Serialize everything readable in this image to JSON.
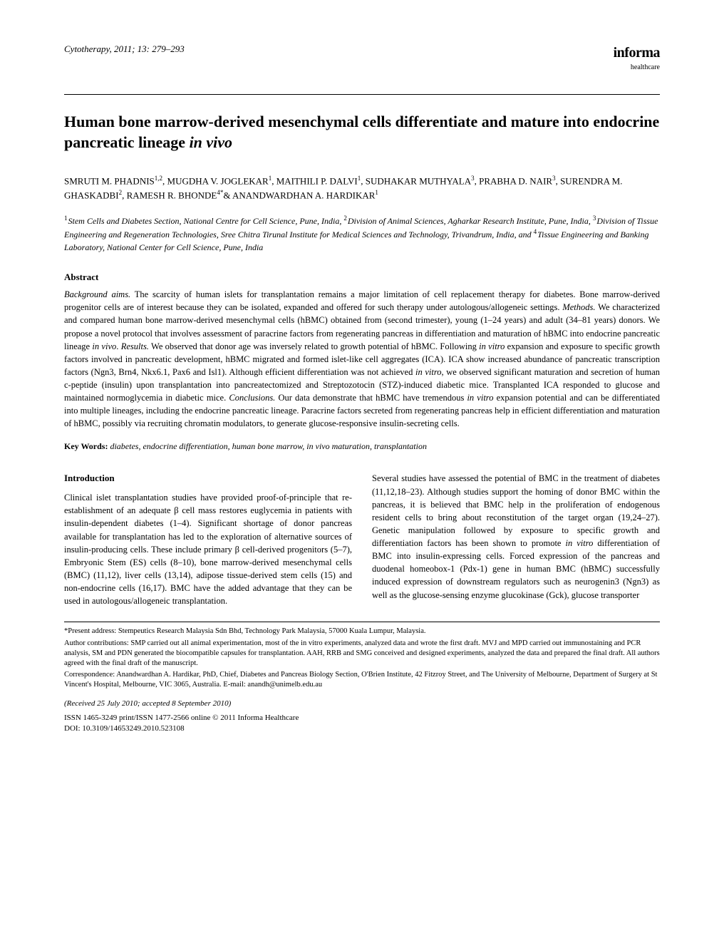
{
  "header": {
    "journal_ref": "Cytotherapy, 2011; 13: 279–293",
    "publisher_name": "informa",
    "publisher_sub": "healthcare"
  },
  "title_pre": "Human bone marrow-derived mesenchymal cells differentiate and mature into endocrine pancreatic lineage ",
  "title_ital": "in vivo",
  "authors": "SMRUTI M. PHADNIS",
  "authors_sup1": "1,2",
  "authors2": ", MUGDHA V. JOGLEKAR",
  "authors_sup2": "1",
  "authors3": ", MAITHILI P. DALVI",
  "authors_sup3": "1",
  "authors4": ", SUDHAKAR MUTHYALA",
  "authors_sup4": "3",
  "authors5": ", PRABHA D. NAIR",
  "authors_sup5": "3",
  "authors6": ", SURENDRA M. GHASKADBI",
  "authors_sup6": "2",
  "authors7": ", RAMESH R. BHONDE",
  "authors_sup7": "4*",
  "authors8": "& ANANDWARDHAN A. HARDIKAR",
  "authors_sup8": "1",
  "affiliations": {
    "a1s": "1",
    "a1": "Stem Cells and Diabetes Section, National Centre for Cell Science, Pune, India, ",
    "a2s": "2",
    "a2": "Division of Animal Sciences, Agharkar Research Institute, Pune, India, ",
    "a3s": "3",
    "a3": "Division of Tissue Engineering and Regeneration Technologies, Sree Chitra Tirunal Institute for Medical Sciences and Technology, Trivandrum, India, and ",
    "a4s": "4",
    "a4": "Tissue Engineering and Banking Laboratory, National Center for Cell Science, Pune, India"
  },
  "abstract": {
    "heading": "Abstract",
    "bg_label": "Background aims.",
    "bg": " The scarcity of human islets for transplantation remains a major limitation of cell replacement therapy for diabetes. Bone marrow-derived progenitor cells are of interest because they can be isolated, expanded and offered for such therapy under autologous/allogeneic settings. ",
    "m_label": "Methods.",
    "m": " We characterized and compared human bone marrow-derived mesenchymal cells (hBMC) obtained from (second trimester), young (1–24 years) and adult (34–81 years) donors. We propose a novel protocol that involves assessment of paracrine factors from regenerating pancreas in differentiation and maturation of hBMC into endocrine pancreatic lineage ",
    "m_ital": "in vivo",
    "m2": ". ",
    "r_label": "Results.",
    "r": " We observed that donor age was inversely related to growth potential of hBMC. Following ",
    "r_ital1": "in vitro",
    "r2": " expansion and exposure to specific growth factors involved in pancreatic development, hBMC migrated and formed islet-like cell aggregates (ICA). ICA show increased abundance of pancreatic transcription factors (Ngn3, Brn4, Nkx6.1, Pax6 and Isl1). Although efficient differentiation was not achieved ",
    "r_ital2": "in vitro",
    "r3": ", we observed significant maturation and secretion of human c-peptide (insulin) upon transplantation into pancreatectomized and Streptozotocin (STZ)-induced diabetic mice. Transplanted ICA responded to glucose and maintained normoglycemia in diabetic mice. ",
    "c_label": "Conclusions.",
    "c": " Our data demonstrate that hBMC have tremendous ",
    "c_ital": "in vitro",
    "c2": " expansion potential and can be differentiated into multiple lineages, including the endocrine pancreatic lineage. Paracrine factors secreted from regenerating pancreas help in efficient differentiation and maturation of hBMC, possibly via recruiting chromatin modulators, to generate glucose-responsive insulin-secreting cells."
  },
  "keywords": {
    "label": "Key Words:",
    "list": " diabetes, endocrine differentiation, human bone marrow, in vivo maturation, transplantation"
  },
  "intro": {
    "heading": "Introduction",
    "left": "Clinical islet transplantation studies have provided proof-of-principle that re-establishment of an adequate β cell mass restores euglycemia in patients with insulin-dependent diabetes (1–4). Significant shortage of donor pancreas available for transplantation has led to the exploration of alternative sources of insulin-producing cells. These include primary β cell-derived progenitors (5–7), Embryonic Stem (ES) cells (8–10), bone marrow-derived mesenchymal cells (BMC) (11,12), liver cells (13,14), adipose tissue-derived stem cells (15) and non-endocrine cells (16,17). BMC have the added advantage that they can be used in autologous/allogeneic transplantation.",
    "right1": "Several studies have assessed the potential of BMC in the treatment of diabetes (11,12,18–23). Although studies support the homing of donor BMC within the pancreas, it is believed that BMC help in the proliferation of endogenous resident cells to bring about reconstitution of the target organ (19,24–27). Genetic manipulation followed by exposure to specific growth and differentiation factors has been shown to promote ",
    "right_ital": "in vitro",
    "right2": " differentiation of BMC into insulin-expressing cells. Forced expression of the pancreas and duodenal homeobox-1 (Pdx-1) gene in human BMC (hBMC) successfully induced expression of downstream regulators such as neurogenin3 (Ngn3) as well as the glucose-sensing enzyme glucokinase (Gck), glucose transporter"
  },
  "footnotes": {
    "present": "*Present address: Stempeutics Research Malaysia Sdn Bhd, Technology Park Malaysia, 57000 Kuala Lumpur, Malaysia.",
    "contrib_label": "Author contributions:",
    "contrib": " SMP carried out all animal experimentation, most of the in vitro experiments, analyzed data and wrote the first draft. MVJ and MPD carried out immunostaining and PCR analysis, SM and PDN generated the biocompatible capsules for transplantation. AAH, RRB and SMG conceived and designed experiments, analyzed the data and prepared the final draft. All authors agreed with the final draft of the manuscript.",
    "corr_label": "Correspondence:",
    "corr": " Anandwardhan A. Hardikar, PhD, Chief, Diabetes and Pancreas Biology Section, O'Brien Institute, 42 Fitzroy Street, and The University of Melbourne, Department of Surgery at St Vincent's Hospital, Melbourne, VIC 3065, Australia. E-mail: anandh@unimelb.edu.au"
  },
  "received": "(Received 25 July 2010; accepted 8 September 2010)",
  "issn1": "ISSN 1465-3249 print/ISSN 1477-2566 online © 2011 Informa Healthcare",
  "issn2": "DOI: 10.3109/14653249.2010.523108"
}
